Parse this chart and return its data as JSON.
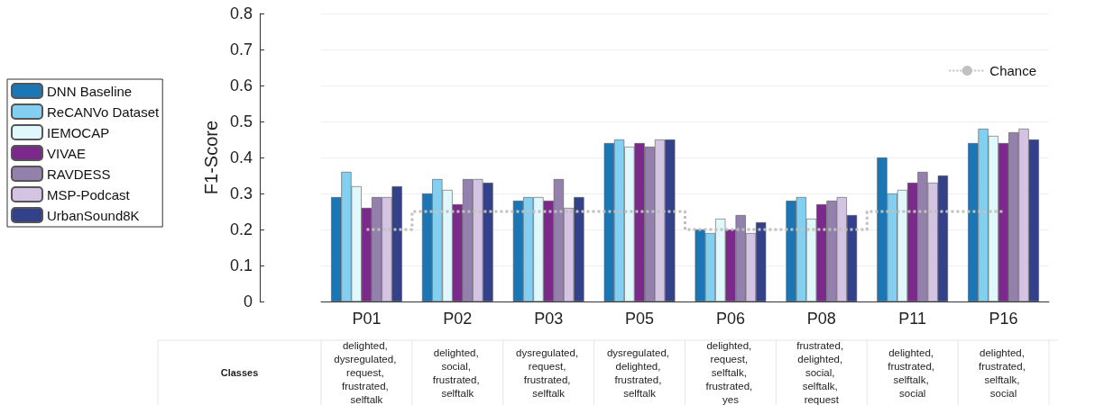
{
  "chart_data": {
    "type": "bar",
    "ylabel": "F1-Score",
    "categories": [
      "P01",
      "P02",
      "P03",
      "P05",
      "P06",
      "P08",
      "P11",
      "P16"
    ],
    "series": [
      {
        "name": "DNN Baseline",
        "color": "#1a76b5",
        "values": [
          0.29,
          0.3,
          0.28,
          0.44,
          0.2,
          0.28,
          0.4,
          0.44
        ]
      },
      {
        "name": "ReCANVo Dataset",
        "color": "#82cff1",
        "values": [
          0.36,
          0.34,
          0.29,
          0.45,
          0.19,
          0.29,
          0.3,
          0.48
        ]
      },
      {
        "name": "IEMOCAP",
        "color": "#e0f8fc",
        "values": [
          0.32,
          0.31,
          0.29,
          0.43,
          0.23,
          0.23,
          0.31,
          0.46
        ]
      },
      {
        "name": "VIVAE",
        "color": "#7b2a8c",
        "values": [
          0.26,
          0.27,
          0.28,
          0.44,
          0.2,
          0.27,
          0.33,
          0.44
        ]
      },
      {
        "name": "RAVDESS",
        "color": "#9480ad",
        "values": [
          0.29,
          0.34,
          0.34,
          0.43,
          0.24,
          0.28,
          0.36,
          0.47
        ]
      },
      {
        "name": "MSP-Podcast",
        "color": "#d4c3e3",
        "values": [
          0.29,
          0.34,
          0.26,
          0.45,
          0.19,
          0.29,
          0.33,
          0.48
        ]
      },
      {
        "name": "UrbanSound8K",
        "color": "#33418a",
        "values": [
          0.32,
          0.33,
          0.29,
          0.45,
          0.22,
          0.24,
          0.35,
          0.45
        ]
      },
      {
        "name": "Chance",
        "type": "step",
        "color": "#c0c0c0",
        "line_style": "dotted",
        "marker": "none",
        "values": [
          0.2,
          0.25,
          0.25,
          0.25,
          0.2,
          0.2,
          0.25,
          0.25
        ]
      }
    ],
    "ylim": [
      0,
      0.8
    ],
    "yticks": [
      0,
      0.1,
      0.2,
      0.3,
      0.4,
      0.5,
      0.6,
      0.7,
      0.8
    ],
    "grid": "y",
    "legend": "left",
    "annotations": [
      "Classes",
      "delighted, dysregulated, request, frustrated, selftalk",
      "delighted, social, frustrated, selftalk",
      "dysregulated, request, frustrated, selftalk",
      "dysregulated, delighted, frustrated, selftalk",
      "delighted, request, selftalk, frustrated, yes",
      "frustrated, delighted, social, selftalk, request",
      "delighted, frustrated, selftalk, social",
      "delighted, frustrated, selftalk, social"
    ]
  }
}
